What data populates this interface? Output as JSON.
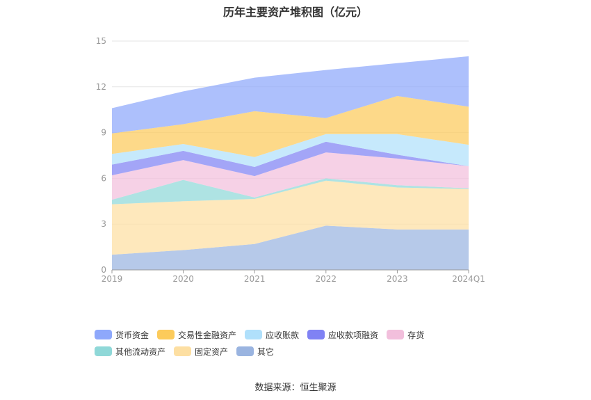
{
  "chart_data": {
    "type": "area",
    "stacked": true,
    "title": "历年主要资产堆积图（亿元）",
    "categories": [
      "2019",
      "2020",
      "2021",
      "2022",
      "2023",
      "2024Q1"
    ],
    "ylim": [
      0,
      15
    ],
    "yticks": [
      0,
      3,
      6,
      9,
      12,
      15
    ],
    "grid": true,
    "legend_position": "bottom",
    "series": [
      {
        "name": "其它",
        "color": "#9ab4e0",
        "values": [
          1.0,
          1.3,
          1.7,
          2.9,
          2.65,
          2.65
        ]
      },
      {
        "name": "固定资产",
        "color": "#fddfa2",
        "values": [
          3.3,
          3.2,
          2.95,
          2.95,
          2.75,
          2.65
        ]
      },
      {
        "name": "其他流动资产",
        "color": "#8fd8d8",
        "values": [
          0.3,
          1.4,
          0.1,
          0.15,
          0.15,
          0.05
        ]
      },
      {
        "name": "存货",
        "color": "#f2bfdc",
        "values": [
          1.6,
          1.3,
          1.4,
          1.7,
          1.75,
          1.45
        ]
      },
      {
        "name": "应收款项融资",
        "color": "#8082f4",
        "values": [
          0.7,
          0.6,
          0.6,
          0.7,
          0.25,
          0.0
        ]
      },
      {
        "name": "应收账款",
        "color": "#b0e0fb",
        "values": [
          0.7,
          0.45,
          0.65,
          0.5,
          1.35,
          1.4
        ]
      },
      {
        "name": "交易性金融资产",
        "color": "#fccb5b",
        "values": [
          1.35,
          1.3,
          3.0,
          1.05,
          2.5,
          2.5
        ]
      },
      {
        "name": "货币资金",
        "color": "#8ea8fb",
        "values": [
          1.65,
          2.15,
          2.2,
          3.15,
          2.15,
          3.3
        ]
      }
    ]
  },
  "legend": [
    {
      "name": "货币资金",
      "color": "#8ea8fb"
    },
    {
      "name": "交易性金融资产",
      "color": "#fccb5b"
    },
    {
      "name": "应收账款",
      "color": "#b0e0fb"
    },
    {
      "name": "应收款项融资",
      "color": "#8082f4"
    },
    {
      "name": "存货",
      "color": "#f2bfdc"
    },
    {
      "name": "其他流动资产",
      "color": "#8fd8d8"
    },
    {
      "name": "固定资产",
      "color": "#fddfa2"
    },
    {
      "name": "其它",
      "color": "#9ab4e0"
    }
  ],
  "source": "数据来源：恒生聚源"
}
